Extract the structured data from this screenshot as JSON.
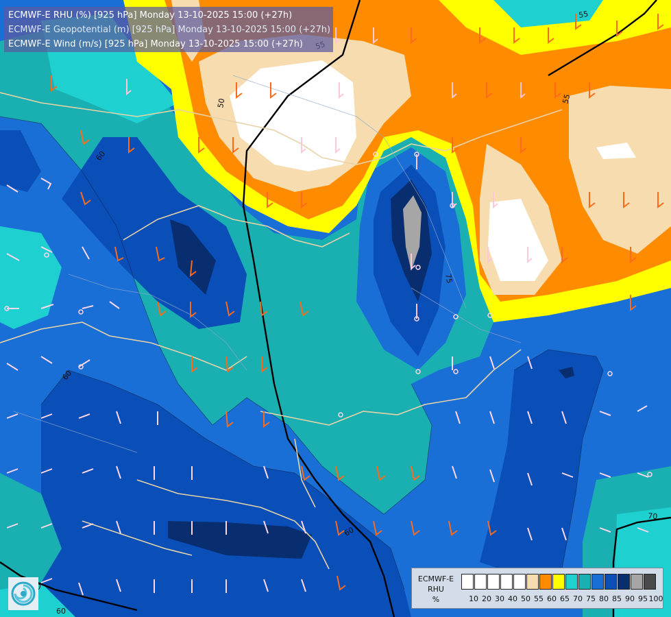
{
  "header": {
    "line1": "ECMWF-E RHU (%) [925 hPa] Monday 13-10-2025 15:00 (+27h)",
    "line2": "ECMWF-E Geopotential (m) [925 hPa] Monday 13-10-2025 15:00 (+27h)",
    "line3": "ECMWF-E Wind (m/s) [925 hPa] Monday 13-10-2025 15:00 (+27h)"
  },
  "legend": {
    "title_line1": "ECMWF-E",
    "title_line2": "RHU",
    "title_line3": "%",
    "ticks": [
      "10",
      "20",
      "30",
      "40",
      "50",
      "55",
      "60",
      "65",
      "70",
      "75",
      "80",
      "85",
      "90",
      "95",
      "100"
    ],
    "swatch_colors": [
      "#ffffff",
      "#ffffff",
      "#ffffff",
      "#ffffff",
      "#ffffff",
      "#f7dcb0",
      "#ff8c00",
      "#ffff00",
      "#1fd0d0",
      "#1aafb0",
      "#1a6fd6",
      "#0a4fb8",
      "#082e70",
      "#a6a6a6",
      "#4a4a4a"
    ]
  },
  "contour_labels": [
    "50",
    "55",
    "55",
    "60",
    "60",
    "60",
    "60",
    "75",
    "70",
    "70",
    "60",
    "55"
  ],
  "colors": {
    "white": "#ffffff",
    "tan": "#f7dcb0",
    "orange": "#ff8c00",
    "yellow": "#ffff00",
    "cyan": "#1fd0d0",
    "teal": "#1aafb0",
    "blue": "#1a6fd6",
    "deep_blue": "#0a4fb8",
    "navy": "#082e70",
    "grey": "#a6a6a6"
  },
  "logo_icon": "ecmwf-swirl-icon"
}
